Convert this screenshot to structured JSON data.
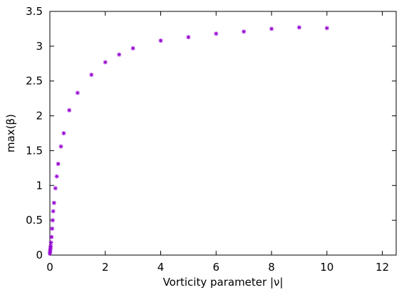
{
  "chart_data": {
    "type": "scatter",
    "title": "",
    "xlabel": "Vorticity parameter |ν|",
    "ylabel": "max(β)",
    "xlim": [
      0,
      12.5
    ],
    "ylim": [
      0,
      3.5
    ],
    "xticks": [
      "0",
      "2",
      "4",
      "6",
      "8",
      "10",
      "12"
    ],
    "yticks": [
      "0",
      "0.5",
      "1",
      "1.5",
      "2",
      "2.5",
      "3",
      "3.5"
    ],
    "grid": false,
    "legend": "none",
    "marker": "asterisk",
    "colors": {
      "marker": "#9400d3",
      "axis": "#000000"
    },
    "series": [
      {
        "x": [
          0.0,
          0.005,
          0.01,
          0.015,
          0.02,
          0.03,
          0.04,
          0.06,
          0.08,
          0.1,
          0.12,
          0.15,
          0.2,
          0.25,
          0.3,
          0.4,
          0.5,
          0.7,
          1.0,
          1.5,
          2.0,
          2.5,
          3.0,
          4.0,
          5.0,
          6.0,
          7.0,
          8.0,
          9.0,
          10.0
        ],
        "y": [
          0.02,
          0.04,
          0.06,
          0.08,
          0.1,
          0.13,
          0.18,
          0.26,
          0.38,
          0.5,
          0.63,
          0.75,
          0.96,
          1.13,
          1.31,
          1.56,
          1.75,
          2.08,
          2.33,
          2.59,
          2.77,
          2.88,
          2.97,
          3.08,
          3.13,
          3.18,
          3.21,
          3.25,
          3.27,
          3.26
        ]
      }
    ]
  }
}
